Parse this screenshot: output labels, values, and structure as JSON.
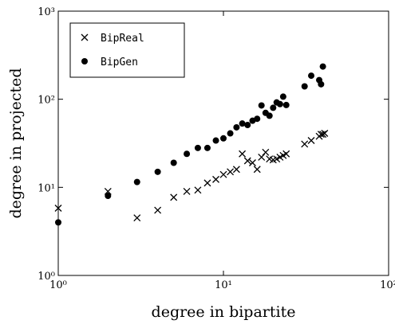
{
  "chart_data": {
    "type": "scatter",
    "xlabel": "degree in bipartite",
    "ylabel": "degree in projected",
    "xscale": "log",
    "yscale": "log",
    "xlim": [
      1,
      100
    ],
    "ylim": [
      1,
      1000
    ],
    "xticks": [
      {
        "value": 1,
        "label": "10⁰"
      },
      {
        "value": 10,
        "label": "10¹"
      },
      {
        "value": 100,
        "label": "10²"
      }
    ],
    "yticks": [
      {
        "value": 1,
        "label": "10⁰"
      },
      {
        "value": 10,
        "label": "10¹"
      },
      {
        "value": 100,
        "label": "10²"
      },
      {
        "value": 1000,
        "label": "10³"
      }
    ],
    "legend": "upper left",
    "series": [
      {
        "name": "BipReal",
        "marker": "x",
        "color": "#000000",
        "x": [
          1,
          2,
          3,
          4,
          5,
          6,
          7,
          8,
          9,
          10,
          11,
          12,
          13,
          14,
          15,
          16,
          17,
          18,
          19,
          20,
          21,
          22,
          23,
          24,
          31,
          34,
          38,
          39,
          40,
          41
        ],
        "values": [
          5.8,
          9,
          4.5,
          5.5,
          7.7,
          9,
          9.3,
          11.2,
          12.3,
          14,
          15,
          16,
          24,
          20,
          19,
          16,
          22,
          25,
          21,
          20.5,
          21,
          22,
          23,
          24,
          31,
          34,
          38,
          40,
          40,
          41
        ]
      },
      {
        "name": "BipGen",
        "marker": "o",
        "color": "#000000",
        "x": [
          1,
          2,
          3,
          4,
          5,
          6,
          7,
          8,
          9,
          10,
          11,
          12,
          13,
          14,
          15,
          16,
          17,
          18,
          19,
          20,
          21,
          22,
          23,
          24,
          31,
          34,
          38,
          39,
          40
        ],
        "values": [
          4,
          8,
          11.5,
          15,
          19,
          24,
          28,
          28,
          34,
          36,
          41,
          48,
          53,
          51,
          57,
          60,
          85,
          70,
          65,
          80,
          92,
          88,
          107,
          86,
          140,
          185,
          165,
          148,
          235
        ]
      }
    ]
  }
}
